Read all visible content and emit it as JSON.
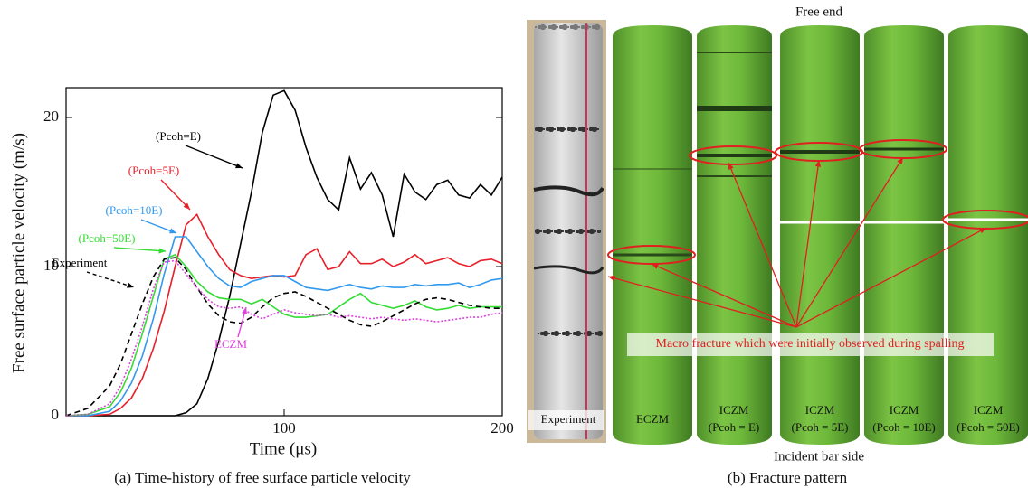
{
  "chart_data": {
    "type": "line",
    "caption": "(a) Time-history of free surface particle velocity",
    "xlabel": "Time (μs)",
    "ylabel": "Free surface particle velocity (m/s)",
    "xlim": [
      0,
      200
    ],
    "ylim": [
      0,
      22
    ],
    "xticks": [
      100,
      200
    ],
    "yticks": [
      0,
      10,
      20
    ],
    "x": [
      0,
      10,
      20,
      25,
      30,
      35,
      40,
      45,
      50,
      55,
      60,
      65,
      70,
      75,
      80,
      85,
      90,
      95,
      100,
      105,
      110,
      115,
      120,
      125,
      130,
      135,
      140,
      145,
      150,
      155,
      160,
      165,
      170,
      175,
      180,
      185,
      190,
      195,
      200
    ],
    "series": [
      {
        "name": "(Pcoh=E)",
        "color": "#000000",
        "dash": "solid",
        "values": [
          0,
          0,
          0,
          0,
          0,
          0,
          0,
          0,
          0,
          0.2,
          0.8,
          2.5,
          5,
          8,
          11.5,
          15,
          19,
          21.5,
          21.8,
          20.5,
          18,
          16,
          14.5,
          13.8,
          17.3,
          15.2,
          16.3,
          14.8,
          12,
          16.2,
          15,
          14.5,
          15.5,
          15.8,
          14.8,
          14.6,
          15.5,
          14.8,
          16
        ]
      },
      {
        "name": "(Pcoh=5E)",
        "color": "#e8202a",
        "dash": "solid",
        "values": [
          0,
          0,
          0.1,
          0.5,
          1.2,
          2.5,
          4.5,
          7,
          10,
          12.8,
          13.5,
          12,
          10.8,
          9.8,
          9.4,
          9.2,
          9.3,
          9.4,
          9.3,
          9.4,
          10.8,
          11.2,
          9.8,
          10,
          11,
          10.2,
          10.2,
          10.5,
          10,
          10.3,
          10.8,
          10.2,
          10.4,
          10.6,
          10.2,
          10,
          10.4,
          10.5,
          10.2
        ]
      },
      {
        "name": "(Pcoh=10E)",
        "color": "#3399ee",
        "dash": "solid",
        "values": [
          0,
          0,
          0.3,
          1,
          2.2,
          4,
          6.5,
          9.5,
          12,
          12,
          11,
          10,
          9.2,
          8.7,
          8.6,
          9,
          9.2,
          9.4,
          9.4,
          9,
          8.6,
          8.5,
          8.4,
          8.6,
          8.8,
          8.6,
          8.5,
          8.7,
          8.6,
          8.6,
          8.8,
          8.7,
          8.8,
          8.8,
          8.9,
          8.6,
          8.8,
          9.1,
          9.2
        ]
      },
      {
        "name": "(Pcoh=50E)",
        "color": "#33dd33",
        "dash": "solid",
        "values": [
          0,
          0.1,
          0.6,
          1.6,
          3.2,
          5.5,
          8,
          10.5,
          10.8,
          10,
          9,
          8.3,
          7.9,
          7.8,
          7.8,
          7.5,
          7.8,
          7.3,
          6.8,
          6.6,
          6.6,
          6.7,
          6.8,
          7.3,
          7.8,
          8.2,
          7.6,
          7.4,
          7.2,
          7.4,
          7.7,
          7.3,
          7.1,
          7.2,
          7.4,
          7.2,
          7.3,
          7.3,
          7.3
        ]
      },
      {
        "name": "Experiment",
        "color": "#000000",
        "dash": "dashed",
        "values": [
          0,
          0.5,
          2,
          3.5,
          5.5,
          7.5,
          9.3,
          10.5,
          10.6,
          9.8,
          8.6,
          7.5,
          6.7,
          6.3,
          6.2,
          6.6,
          7.3,
          7.9,
          8.2,
          8.3,
          8,
          7.6,
          7.2,
          6.8,
          6.4,
          6.1,
          6,
          6.3,
          6.7,
          7.1,
          7.5,
          7.8,
          7.9,
          7.8,
          7.6,
          7.4,
          7.3,
          7.2,
          7.2
        ]
      },
      {
        "name": "ECZM",
        "color": "#e040e0",
        "dash": "dotted",
        "values": [
          0,
          0.1,
          0.8,
          2,
          3.8,
          6,
          8.5,
          10.3,
          10.4,
          9.5,
          8.6,
          7.8,
          7.3,
          7.2,
          7.3,
          6.8,
          6.5,
          6.8,
          7.1,
          6.9,
          6.8,
          6.7,
          6.8,
          6.6,
          6.7,
          6.6,
          6.5,
          6.6,
          6.5,
          6.4,
          6.5,
          6.4,
          6.3,
          6.4,
          6.5,
          6.6,
          6.6,
          6.8,
          6.9
        ]
      }
    ]
  },
  "figure_b": {
    "caption": "(b) Fracture pattern",
    "top_label": "Free end",
    "bottom_label": "Incident bar side",
    "note": "Macro fracture which were initially observed during spalling",
    "columns": [
      {
        "label": "Experiment"
      },
      {
        "label": "ECZM"
      },
      {
        "label": "ICZM",
        "sub": "(Pcoh = E)"
      },
      {
        "label": "ICZM",
        "sub": "(Pcoh = 5E)"
      },
      {
        "label": "ICZM",
        "sub": "(Pcoh = 10E)"
      },
      {
        "label": "ICZM",
        "sub": "(Pcoh = 50E)"
      }
    ]
  }
}
